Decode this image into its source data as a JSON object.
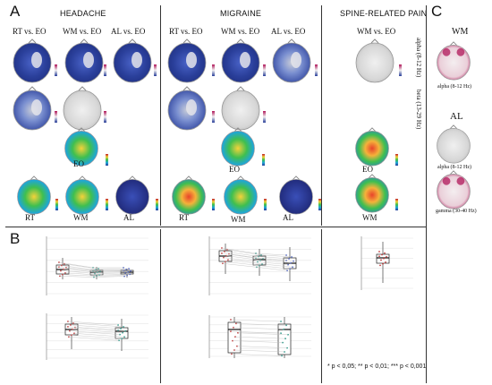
{
  "panels": {
    "a": "A",
    "b": "B",
    "c": "C"
  },
  "groups": {
    "headache": "HEADACHE",
    "migraine": "MIGRAINE",
    "spine": "SPINE-RELATED PAIN"
  },
  "headache": {
    "comparisons": [
      "RT vs. EO",
      "WM vs. EO",
      "AL vs. EO"
    ],
    "conditions": [
      "EO",
      "RT",
      "WM",
      "AL"
    ]
  },
  "migraine": {
    "comparisons": [
      "RT vs. EO",
      "WM vs. EO",
      "AL vs. EO"
    ],
    "conditions": [
      "EO",
      "RT",
      "WM",
      "AL"
    ]
  },
  "spine": {
    "comparisons": [
      "WM vs. EO"
    ],
    "conditions": [
      "EO",
      "WM"
    ]
  },
  "bands": {
    "alpha_row": "alpha (8-12 Hz)",
    "beta_row": "beta (13-29 Hz)"
  },
  "panel_c": {
    "wm": "WM",
    "al": "AL",
    "wm_band": "alpha (8-12 Hz)",
    "al_band1": "alpha (8-12 Hz)",
    "al_band2": "gamma (30-40 Hz)"
  },
  "significance": "* p < 0,05; ** p < 0,01; *** p < 0,001",
  "colors": {
    "blue": "#2a3f9a",
    "grey": "#d7d7d7",
    "magenta": "#b0175a",
    "jet_mid": "#3fbf4f",
    "jet_hot": "#e8432b"
  }
}
